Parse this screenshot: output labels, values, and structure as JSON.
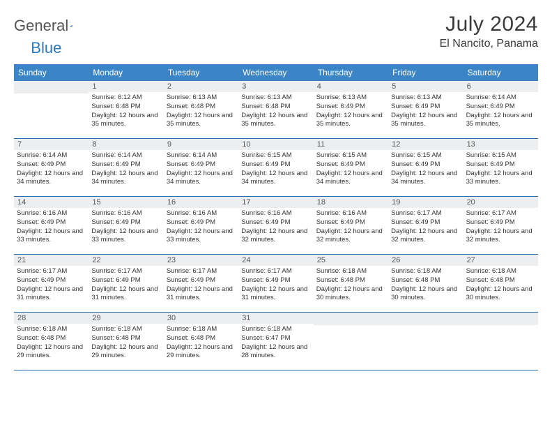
{
  "logo": {
    "text1": "General",
    "text2": "Blue"
  },
  "title": "July 2024",
  "location": "El Nancito, Panama",
  "colors": {
    "header_bg": "#3b85c6",
    "header_text": "#ffffff",
    "daynum_bg": "#eceef0",
    "row_border": "#2a6aa8",
    "logo_blue": "#2a7ac0",
    "logo_gray": "#555555"
  },
  "dayNames": [
    "Sunday",
    "Monday",
    "Tuesday",
    "Wednesday",
    "Thursday",
    "Friday",
    "Saturday"
  ],
  "weeks": [
    [
      {
        "n": "",
        "sr": "",
        "ss": "",
        "dl": ""
      },
      {
        "n": "1",
        "sr": "Sunrise: 6:12 AM",
        "ss": "Sunset: 6:48 PM",
        "dl": "Daylight: 12 hours and 35 minutes."
      },
      {
        "n": "2",
        "sr": "Sunrise: 6:13 AM",
        "ss": "Sunset: 6:48 PM",
        "dl": "Daylight: 12 hours and 35 minutes."
      },
      {
        "n": "3",
        "sr": "Sunrise: 6:13 AM",
        "ss": "Sunset: 6:48 PM",
        "dl": "Daylight: 12 hours and 35 minutes."
      },
      {
        "n": "4",
        "sr": "Sunrise: 6:13 AM",
        "ss": "Sunset: 6:49 PM",
        "dl": "Daylight: 12 hours and 35 minutes."
      },
      {
        "n": "5",
        "sr": "Sunrise: 6:13 AM",
        "ss": "Sunset: 6:49 PM",
        "dl": "Daylight: 12 hours and 35 minutes."
      },
      {
        "n": "6",
        "sr": "Sunrise: 6:14 AM",
        "ss": "Sunset: 6:49 PM",
        "dl": "Daylight: 12 hours and 35 minutes."
      }
    ],
    [
      {
        "n": "7",
        "sr": "Sunrise: 6:14 AM",
        "ss": "Sunset: 6:49 PM",
        "dl": "Daylight: 12 hours and 34 minutes."
      },
      {
        "n": "8",
        "sr": "Sunrise: 6:14 AM",
        "ss": "Sunset: 6:49 PM",
        "dl": "Daylight: 12 hours and 34 minutes."
      },
      {
        "n": "9",
        "sr": "Sunrise: 6:14 AM",
        "ss": "Sunset: 6:49 PM",
        "dl": "Daylight: 12 hours and 34 minutes."
      },
      {
        "n": "10",
        "sr": "Sunrise: 6:15 AM",
        "ss": "Sunset: 6:49 PM",
        "dl": "Daylight: 12 hours and 34 minutes."
      },
      {
        "n": "11",
        "sr": "Sunrise: 6:15 AM",
        "ss": "Sunset: 6:49 PM",
        "dl": "Daylight: 12 hours and 34 minutes."
      },
      {
        "n": "12",
        "sr": "Sunrise: 6:15 AM",
        "ss": "Sunset: 6:49 PM",
        "dl": "Daylight: 12 hours and 34 minutes."
      },
      {
        "n": "13",
        "sr": "Sunrise: 6:15 AM",
        "ss": "Sunset: 6:49 PM",
        "dl": "Daylight: 12 hours and 33 minutes."
      }
    ],
    [
      {
        "n": "14",
        "sr": "Sunrise: 6:16 AM",
        "ss": "Sunset: 6:49 PM",
        "dl": "Daylight: 12 hours and 33 minutes."
      },
      {
        "n": "15",
        "sr": "Sunrise: 6:16 AM",
        "ss": "Sunset: 6:49 PM",
        "dl": "Daylight: 12 hours and 33 minutes."
      },
      {
        "n": "16",
        "sr": "Sunrise: 6:16 AM",
        "ss": "Sunset: 6:49 PM",
        "dl": "Daylight: 12 hours and 33 minutes."
      },
      {
        "n": "17",
        "sr": "Sunrise: 6:16 AM",
        "ss": "Sunset: 6:49 PM",
        "dl": "Daylight: 12 hours and 32 minutes."
      },
      {
        "n": "18",
        "sr": "Sunrise: 6:16 AM",
        "ss": "Sunset: 6:49 PM",
        "dl": "Daylight: 12 hours and 32 minutes."
      },
      {
        "n": "19",
        "sr": "Sunrise: 6:17 AM",
        "ss": "Sunset: 6:49 PM",
        "dl": "Daylight: 12 hours and 32 minutes."
      },
      {
        "n": "20",
        "sr": "Sunrise: 6:17 AM",
        "ss": "Sunset: 6:49 PM",
        "dl": "Daylight: 12 hours and 32 minutes."
      }
    ],
    [
      {
        "n": "21",
        "sr": "Sunrise: 6:17 AM",
        "ss": "Sunset: 6:49 PM",
        "dl": "Daylight: 12 hours and 31 minutes."
      },
      {
        "n": "22",
        "sr": "Sunrise: 6:17 AM",
        "ss": "Sunset: 6:49 PM",
        "dl": "Daylight: 12 hours and 31 minutes."
      },
      {
        "n": "23",
        "sr": "Sunrise: 6:17 AM",
        "ss": "Sunset: 6:49 PM",
        "dl": "Daylight: 12 hours and 31 minutes."
      },
      {
        "n": "24",
        "sr": "Sunrise: 6:17 AM",
        "ss": "Sunset: 6:49 PM",
        "dl": "Daylight: 12 hours and 31 minutes."
      },
      {
        "n": "25",
        "sr": "Sunrise: 6:18 AM",
        "ss": "Sunset: 6:48 PM",
        "dl": "Daylight: 12 hours and 30 minutes."
      },
      {
        "n": "26",
        "sr": "Sunrise: 6:18 AM",
        "ss": "Sunset: 6:48 PM",
        "dl": "Daylight: 12 hours and 30 minutes."
      },
      {
        "n": "27",
        "sr": "Sunrise: 6:18 AM",
        "ss": "Sunset: 6:48 PM",
        "dl": "Daylight: 12 hours and 30 minutes."
      }
    ],
    [
      {
        "n": "28",
        "sr": "Sunrise: 6:18 AM",
        "ss": "Sunset: 6:48 PM",
        "dl": "Daylight: 12 hours and 29 minutes."
      },
      {
        "n": "29",
        "sr": "Sunrise: 6:18 AM",
        "ss": "Sunset: 6:48 PM",
        "dl": "Daylight: 12 hours and 29 minutes."
      },
      {
        "n": "30",
        "sr": "Sunrise: 6:18 AM",
        "ss": "Sunset: 6:48 PM",
        "dl": "Daylight: 12 hours and 29 minutes."
      },
      {
        "n": "31",
        "sr": "Sunrise: 6:18 AM",
        "ss": "Sunset: 6:47 PM",
        "dl": "Daylight: 12 hours and 28 minutes."
      },
      {
        "n": "",
        "sr": "",
        "ss": "",
        "dl": ""
      },
      {
        "n": "",
        "sr": "",
        "ss": "",
        "dl": ""
      },
      {
        "n": "",
        "sr": "",
        "ss": "",
        "dl": ""
      }
    ]
  ]
}
